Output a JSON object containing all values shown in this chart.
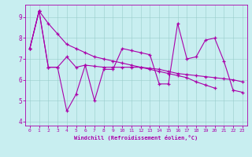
{
  "x": [
    0,
    1,
    2,
    3,
    4,
    5,
    6,
    7,
    8,
    9,
    10,
    11,
    12,
    13,
    14,
    15,
    16,
    17,
    18,
    19,
    20,
    21,
    22,
    23
  ],
  "series1": [
    7.5,
    9.3,
    6.6,
    6.6,
    4.5,
    5.3,
    6.7,
    5.0,
    6.5,
    6.5,
    7.5,
    7.4,
    7.3,
    7.2,
    5.8,
    5.8,
    8.7,
    7.0,
    7.1,
    7.9,
    8.0,
    6.9,
    5.5,
    5.4
  ],
  "series2": [
    7.5,
    9.3,
    6.6,
    6.6,
    7.1,
    6.6,
    6.7,
    6.65,
    6.6,
    6.6,
    6.6,
    6.6,
    6.6,
    6.55,
    6.5,
    6.4,
    6.3,
    6.25,
    6.2,
    6.15,
    6.1,
    6.05,
    6.0,
    5.9
  ],
  "series3": [
    7.5,
    9.3,
    8.7,
    8.2,
    7.7,
    7.5,
    7.3,
    7.1,
    7.0,
    6.9,
    6.8,
    6.7,
    6.6,
    6.5,
    6.4,
    6.3,
    6.2,
    6.1,
    5.9,
    5.75,
    5.6,
    null,
    null,
    null
  ],
  "bg_color": "#c8eef0",
  "line_color": "#aa00aa",
  "grid_color": "#99cccc",
  "xlabel": "Windchill (Refroidissement éolien,°C)",
  "xlim": [
    -0.5,
    23.5
  ],
  "ylim": [
    3.8,
    9.6
  ],
  "yticks": [
    4,
    5,
    6,
    7,
    8,
    9
  ],
  "xticks": [
    0,
    1,
    2,
    3,
    4,
    5,
    6,
    7,
    8,
    9,
    10,
    11,
    12,
    13,
    14,
    15,
    16,
    17,
    18,
    19,
    20,
    21,
    22,
    23
  ]
}
